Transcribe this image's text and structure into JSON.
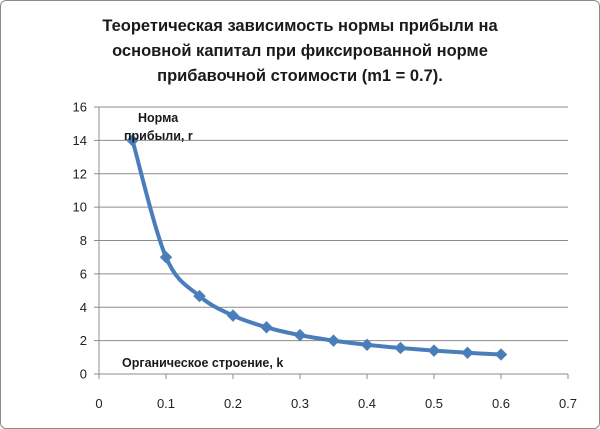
{
  "chart_data": {
    "type": "line",
    "title_lines": [
      "Теоретическая зависимость нормы прибыли на",
      "основной капитал при фиксированной норме",
      "прибавочной стоимости (m1 = 0.7)."
    ],
    "ylabel_lines": [
      "Норма",
      "прибыли, r"
    ],
    "xlabel": "Органическое строение, k",
    "xlim": [
      0,
      0.7
    ],
    "ylim": [
      0,
      16
    ],
    "x_ticks": [
      "0",
      "0.1",
      "0.2",
      "0.3",
      "0.4",
      "0.5",
      "0.6",
      "0.7"
    ],
    "y_ticks": [
      "0",
      "2",
      "4",
      "6",
      "8",
      "10",
      "12",
      "14",
      "16"
    ],
    "grid": "horizontal",
    "series_color": "#4a7ebb",
    "x": [
      0.05,
      0.1,
      0.15,
      0.2,
      0.25,
      0.3,
      0.35,
      0.4,
      0.45,
      0.5,
      0.55,
      0.6
    ],
    "y": [
      14.0,
      7.0,
      4.67,
      3.5,
      2.8,
      2.33,
      2.0,
      1.75,
      1.56,
      1.4,
      1.27,
      1.17
    ]
  }
}
